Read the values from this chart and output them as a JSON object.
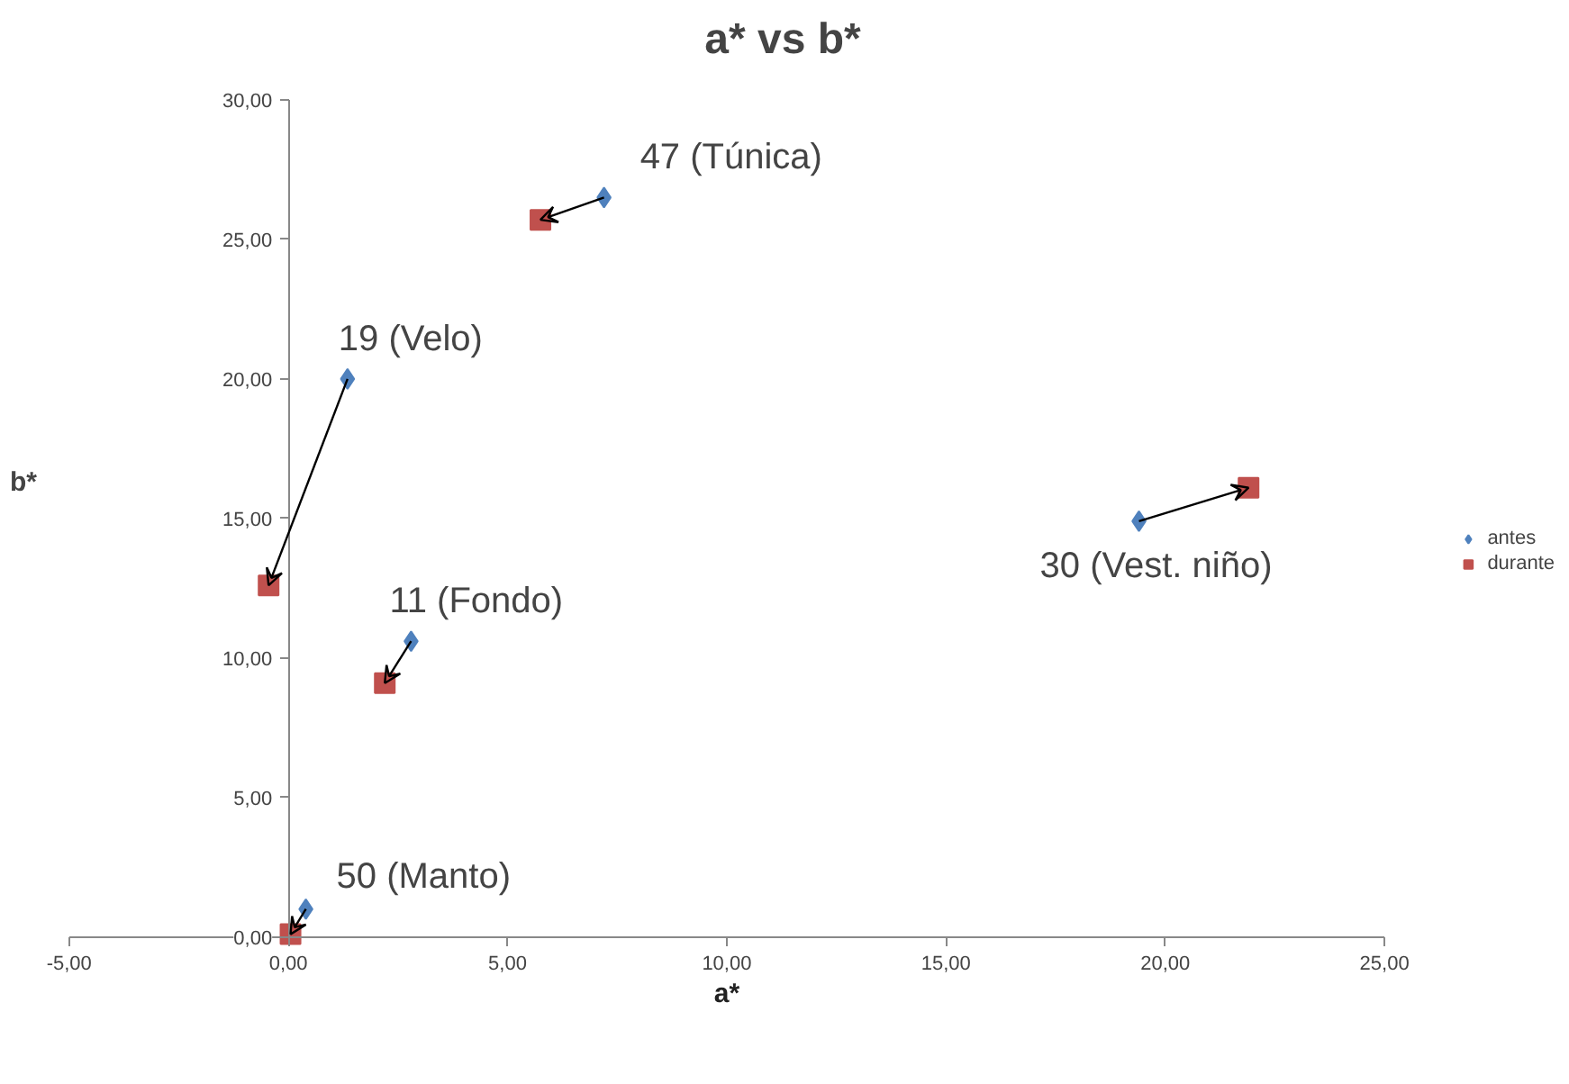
{
  "chart_data": {
    "type": "scatter",
    "title": "a* vs b*",
    "xlabel": "a*",
    "ylabel": "b*",
    "xlim": [
      -5,
      25
    ],
    "ylim": [
      0,
      30
    ],
    "xticks": [
      {
        "value": -5,
        "label": "-5,00"
      },
      {
        "value": 0,
        "label": "0,00"
      },
      {
        "value": 5,
        "label": "5,00"
      },
      {
        "value": 10,
        "label": "10,00"
      },
      {
        "value": 15,
        "label": "15,00"
      },
      {
        "value": 20,
        "label": "20,00"
      },
      {
        "value": 25,
        "label": "25,00"
      }
    ],
    "yticks": [
      {
        "value": 0,
        "label": "0,00"
      },
      {
        "value": 5,
        "label": "5,00"
      },
      {
        "value": 10,
        "label": "10,00"
      },
      {
        "value": 15,
        "label": "15,00"
      },
      {
        "value": 20,
        "label": "20,00"
      },
      {
        "value": 25,
        "label": "25,00"
      },
      {
        "value": 30,
        "label": "30,00"
      }
    ],
    "series": [
      {
        "name": "antes",
        "color": "#4f81bd",
        "marker": "diamond",
        "x": [
          7.2,
          1.35,
          2.8,
          19.4,
          0.4
        ],
        "values": [
          26.5,
          20.0,
          10.6,
          14.9,
          1.0
        ]
      },
      {
        "name": "durante",
        "color": "#c0504d",
        "marker": "square",
        "x": [
          5.75,
          -0.45,
          2.2,
          21.9,
          0.05
        ],
        "values": [
          25.7,
          12.6,
          9.1,
          16.1,
          0.1
        ]
      }
    ],
    "annotations": [
      {
        "text": "47 (Túnica)",
        "x": 7.2,
        "y": 26.5
      },
      {
        "text": "19 (Velo)",
        "x": 1.35,
        "y": 20.0
      },
      {
        "text": "11 (Fondo)",
        "x": 2.8,
        "y": 10.6
      },
      {
        "text": "30 (Vest. niño)",
        "x": 19.4,
        "y": 14.9
      },
      {
        "text": "50 (Manto)",
        "x": 0.4,
        "y": 1.0
      }
    ],
    "grid": false,
    "legend": "right"
  }
}
